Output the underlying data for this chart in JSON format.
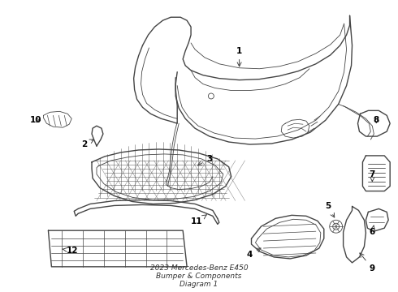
{
  "title": "2023 Mercedes-Benz E450\nBumper & Components\nDiagram 1",
  "background_color": "#ffffff",
  "line_color": "#444444",
  "label_color": "#000000",
  "fig_width": 4.9,
  "fig_height": 3.6,
  "dpi": 100
}
